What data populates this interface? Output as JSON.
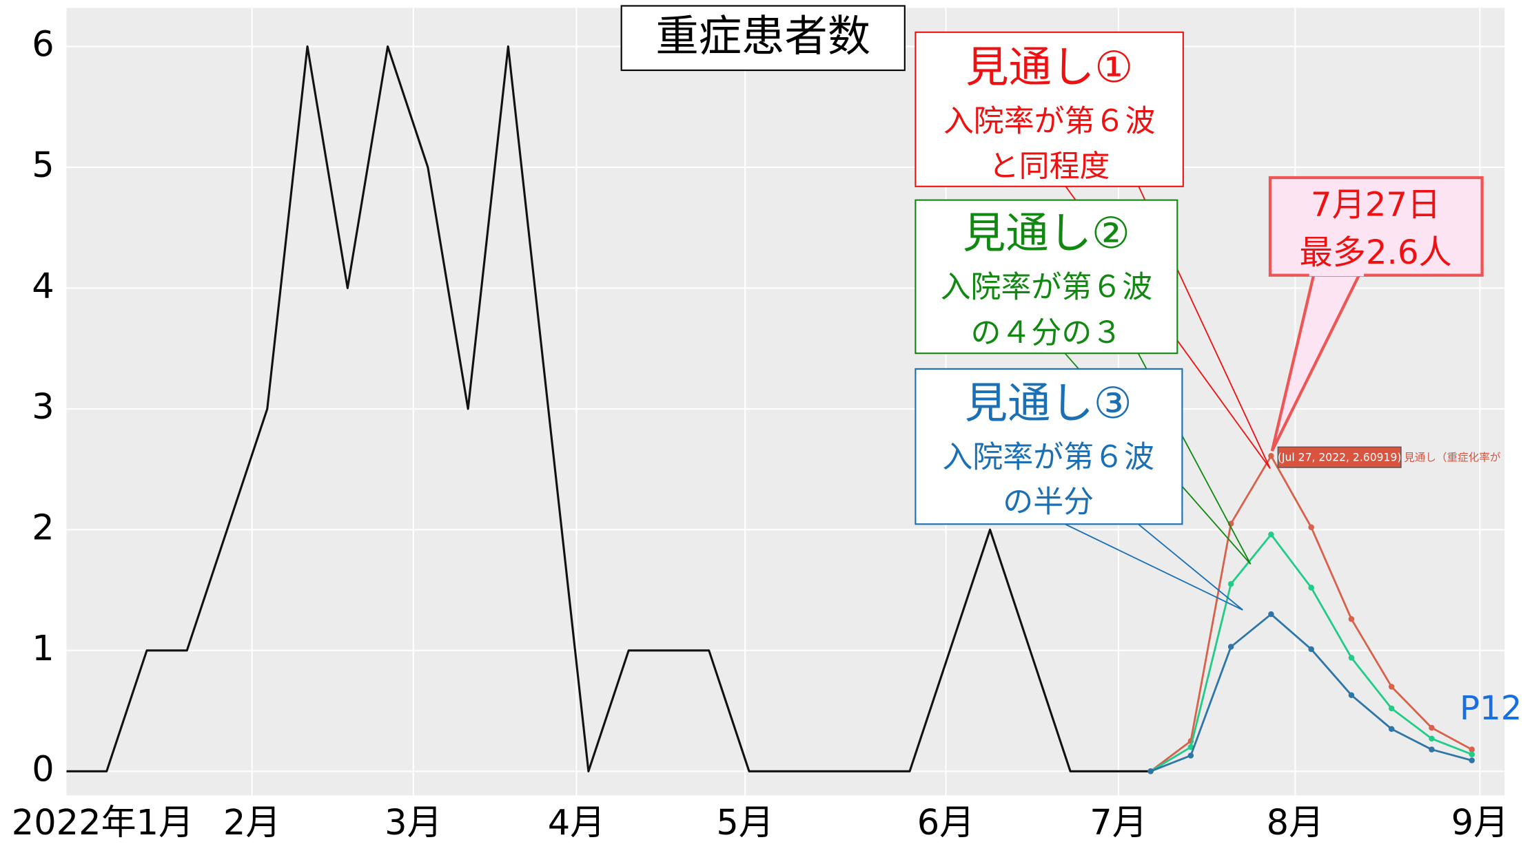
{
  "chart_data": {
    "type": "line",
    "title": "重症患者数",
    "x": [
      0,
      1,
      2,
      3,
      4,
      5,
      6,
      7,
      8,
      9,
      10,
      11,
      12,
      13,
      14,
      15,
      16,
      17,
      18,
      19,
      20,
      21,
      22,
      23,
      24,
      25,
      26,
      27,
      28,
      29,
      30,
      31,
      32,
      33,
      34,
      35
    ],
    "series": [
      {
        "color": "#111111",
        "values": [
          0,
          0,
          1,
          1,
          2,
          3,
          6,
          4,
          6,
          5,
          3,
          6,
          3,
          0,
          1,
          1,
          1,
          0,
          0,
          0,
          0,
          0,
          1,
          2,
          1,
          0,
          0,
          0,
          null,
          null,
          null,
          null,
          null,
          null,
          null,
          null
        ],
        "markers": false
      },
      {
        "color": "#d9604a",
        "values": [
          null,
          null,
          null,
          null,
          null,
          null,
          null,
          null,
          null,
          null,
          null,
          null,
          null,
          null,
          null,
          null,
          null,
          null,
          null,
          null,
          null,
          null,
          null,
          null,
          null,
          null,
          null,
          0,
          0.25,
          2.05,
          2.61,
          2.02,
          1.26,
          0.7,
          0.36,
          0.18
        ],
        "markers": true
      },
      {
        "color": "#22cc88",
        "values": [
          null,
          null,
          null,
          null,
          null,
          null,
          null,
          null,
          null,
          null,
          null,
          null,
          null,
          null,
          null,
          null,
          null,
          null,
          null,
          null,
          null,
          null,
          null,
          null,
          null,
          null,
          null,
          0,
          0.2,
          1.55,
          1.96,
          1.52,
          0.94,
          0.52,
          0.27,
          0.14
        ],
        "markers": true
      },
      {
        "color": "#2f76a6",
        "values": [
          null,
          null,
          null,
          null,
          null,
          null,
          null,
          null,
          null,
          null,
          null,
          null,
          null,
          null,
          null,
          null,
          null,
          null,
          null,
          null,
          null,
          null,
          null,
          null,
          null,
          null,
          null,
          0,
          0.13,
          1.03,
          1.3,
          1.01,
          0.63,
          0.35,
          0.18,
          0.09
        ],
        "markers": true
      }
    ],
    "xlim": [
      0,
      35.8
    ],
    "ylim": [
      -0.2,
      6.32
    ],
    "yticks": [
      0,
      1,
      2,
      3,
      4,
      5,
      6
    ],
    "xticks": [
      {
        "value": 0.9,
        "label": "2022年1月"
      },
      {
        "value": 4.62,
        "label": "2月"
      },
      {
        "value": 8.64,
        "label": "3月"
      },
      {
        "value": 12.7,
        "label": "4月"
      },
      {
        "value": 16.9,
        "label": "5月"
      },
      {
        "value": 21.9,
        "label": "6月"
      },
      {
        "value": 26.2,
        "label": "7月"
      },
      {
        "value": 30.6,
        "label": "8月"
      },
      {
        "value": 35.2,
        "label": "9月"
      }
    ],
    "grid": true,
    "annotations": {
      "s1": [
        "見通し①",
        "入院率が第６波",
        "と同程度"
      ],
      "s2": [
        "見通し②",
        "入院率が第６波",
        "の４分の３"
      ],
      "s3": [
        "見通し③",
        "入院率が第６波",
        "の半分"
      ],
      "peak": [
        "7月27日",
        "最多2.6人"
      ],
      "tooltip": "(Jul 27, 2022, 2.60919)",
      "tooltip_name": "見通し（重症化率が",
      "page": "P12"
    }
  }
}
